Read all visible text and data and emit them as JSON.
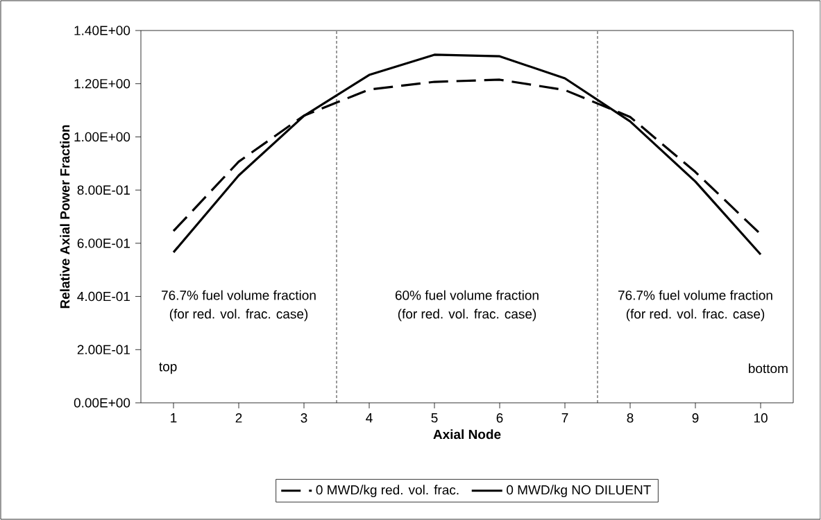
{
  "chart_data": {
    "type": "line",
    "xlabel": "Axial Node",
    "ylabel": "Relative Axial Power Fraction",
    "x": [
      1,
      2,
      3,
      4,
      5,
      6,
      7,
      8,
      9,
      10
    ],
    "xlim": [
      0.5,
      10.5
    ],
    "xticks": [
      1,
      2,
      3,
      4,
      5,
      6,
      7,
      8,
      9,
      10
    ],
    "ylim": [
      0,
      1.4
    ],
    "yticks": [
      {
        "value": 0,
        "label": "0.00E+00"
      },
      {
        "value": 0.2,
        "label": "2.00E-01"
      },
      {
        "value": 0.4,
        "label": "4.00E-01"
      },
      {
        "value": 0.6,
        "label": "6.00E-01"
      },
      {
        "value": 0.8,
        "label": "8.00E-01"
      },
      {
        "value": 1.0,
        "label": "1.00E+00"
      },
      {
        "value": 1.2,
        "label": "1.20E+00"
      },
      {
        "value": 1.4,
        "label": "1.40E+00"
      }
    ],
    "series": [
      {
        "name": "0 MWD/kg red. vol. frac.",
        "color": "#000000",
        "line_style": "dashed",
        "values": [
          0.646,
          0.907,
          1.08,
          1.178,
          1.207,
          1.215,
          1.176,
          1.075,
          0.868,
          0.634
        ]
      },
      {
        "name": "0 MWD/kg NO DILUENT",
        "color": "#000000",
        "line_style": "solid",
        "values": [
          0.566,
          0.855,
          1.079,
          1.233,
          1.309,
          1.303,
          1.22,
          1.058,
          0.832,
          0.558
        ]
      }
    ],
    "ref_lines": [
      {
        "axis": "x",
        "value": 3.5,
        "color": "#000000",
        "line_style": "dashed"
      },
      {
        "axis": "x",
        "value": 7.5,
        "color": "#000000",
        "line_style": "dashed"
      }
    ],
    "annotations": [
      "76.7% fuel volume fraction",
      "(for red. vol. frac. case)",
      "60% fuel volume fraction",
      "(for red. vol. frac. case)",
      "76.7% fuel volume fraction",
      "(for red. vol. frac. case)",
      "top",
      "bottom"
    ],
    "legend": "bottom",
    "grid": false,
    "marker": "none"
  }
}
